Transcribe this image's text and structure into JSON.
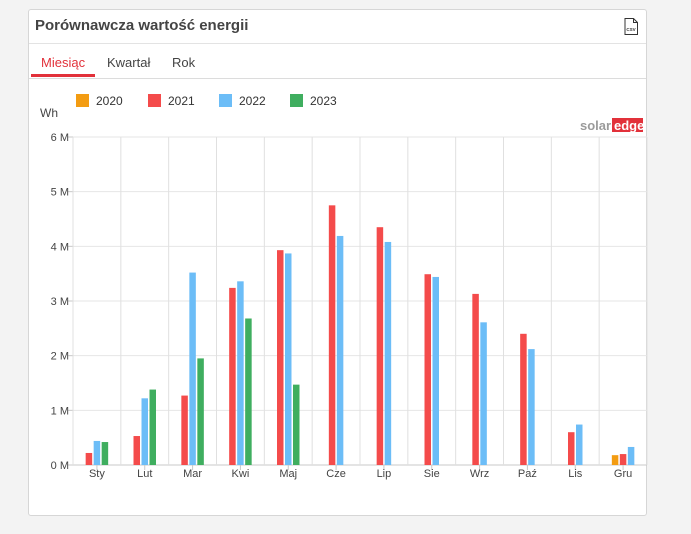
{
  "panel": {
    "title": "Porównawcza wartość energii",
    "csv_icon": "csv-file-icon",
    "csv_label": "CSV"
  },
  "tabs": [
    {
      "label": "Miesiąc",
      "active": true
    },
    {
      "label": "Kwartał",
      "active": false
    },
    {
      "label": "Rok",
      "active": false
    }
  ],
  "brand": {
    "text_solar": "solar",
    "text_edge": "edge",
    "color_solar": "#9b9b9b",
    "color_edge": "#e2313a"
  },
  "chart_data": {
    "type": "bar",
    "ylabel": "Wh",
    "ylim": [
      0,
      6000000
    ],
    "yticks": [
      {
        "value": 0,
        "label": "0 M"
      },
      {
        "value": 1000000,
        "label": "1 M"
      },
      {
        "value": 2000000,
        "label": "2 M"
      },
      {
        "value": 3000000,
        "label": "3 M"
      },
      {
        "value": 4000000,
        "label": "4 M"
      },
      {
        "value": 5000000,
        "label": "5 M"
      },
      {
        "value": 6000000,
        "label": "6 M"
      }
    ],
    "categories": [
      "Sty",
      "Lut",
      "Mar",
      "Kwi",
      "Maj",
      "Cze",
      "Lip",
      "Sie",
      "Wrz",
      "Paź",
      "Lis",
      "Gru"
    ],
    "legend_position": "top-left",
    "grid": true,
    "series": [
      {
        "name": "2020",
        "color": "#f39c12",
        "values": [
          null,
          null,
          null,
          null,
          null,
          null,
          null,
          null,
          null,
          null,
          null,
          180000
        ]
      },
      {
        "name": "2021",
        "color": "#f44b4b",
        "values": [
          220000,
          530000,
          1270000,
          3240000,
          3930000,
          4750000,
          4350000,
          3490000,
          3130000,
          2400000,
          600000,
          200000
        ]
      },
      {
        "name": "2022",
        "color": "#6cbdf7",
        "values": [
          440000,
          1220000,
          3520000,
          3360000,
          3870000,
          4190000,
          4080000,
          3440000,
          2610000,
          2120000,
          740000,
          330000
        ]
      },
      {
        "name": "2023",
        "color": "#3fae5f",
        "values": [
          420000,
          1380000,
          1950000,
          2680000,
          1470000,
          null,
          null,
          null,
          null,
          null,
          null,
          null
        ]
      }
    ]
  }
}
